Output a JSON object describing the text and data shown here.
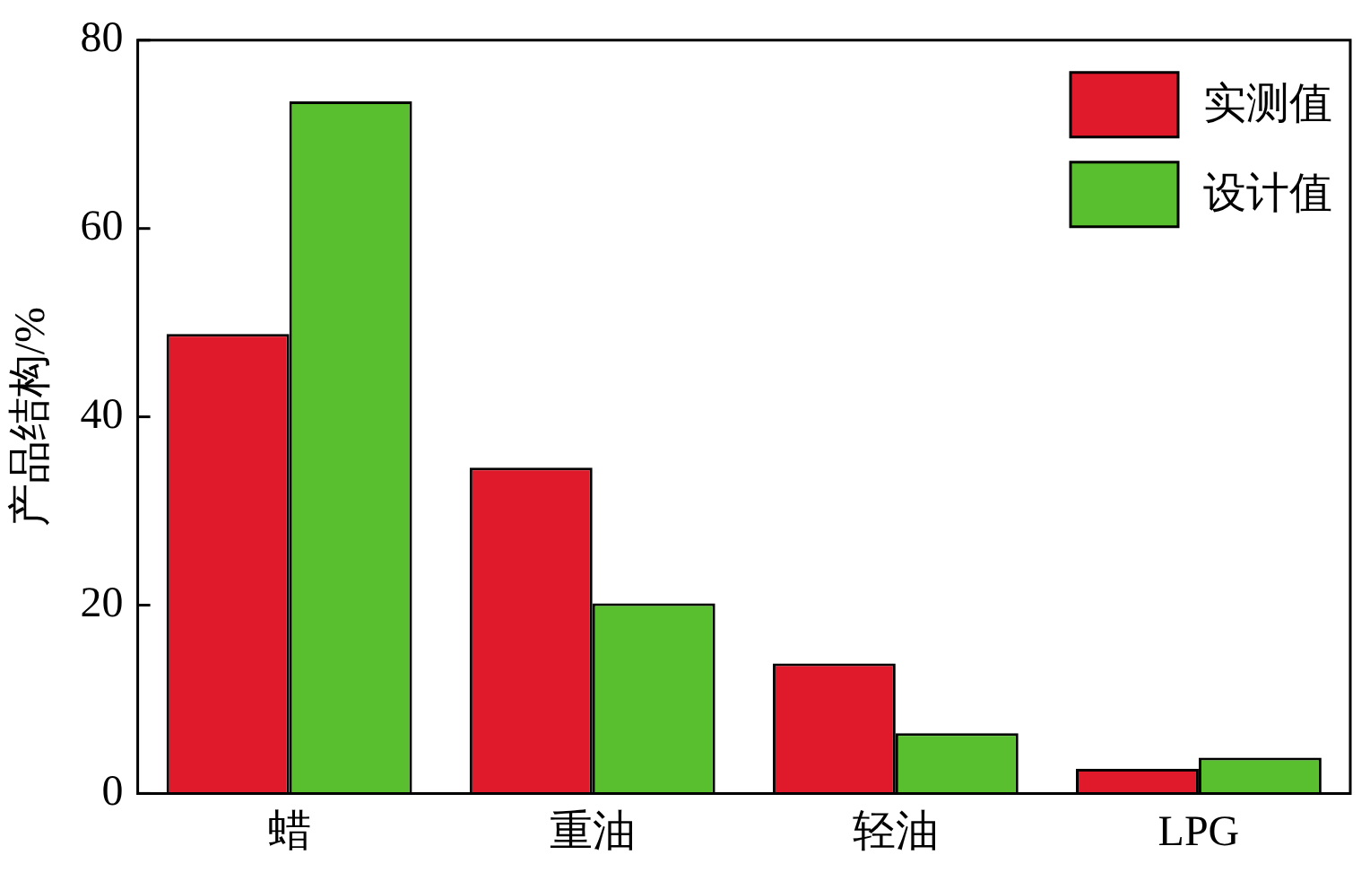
{
  "chart_data": {
    "type": "bar",
    "ylabel": "产品结构/%",
    "categories": [
      "蜡",
      "重油",
      "轻油",
      "LPG"
    ],
    "series": [
      {
        "name": "实测值",
        "color": "#e0192b",
        "values": [
          48.8,
          34.6,
          13.8,
          2.6
        ]
      },
      {
        "name": "设计值",
        "color": "#5abf2f",
        "values": [
          73.5,
          20.2,
          6.4,
          3.8
        ]
      }
    ],
    "ylim": [
      0,
      80
    ],
    "yticks": [
      0,
      20,
      40,
      60,
      80
    ],
    "grid": false,
    "legend": "top right"
  }
}
